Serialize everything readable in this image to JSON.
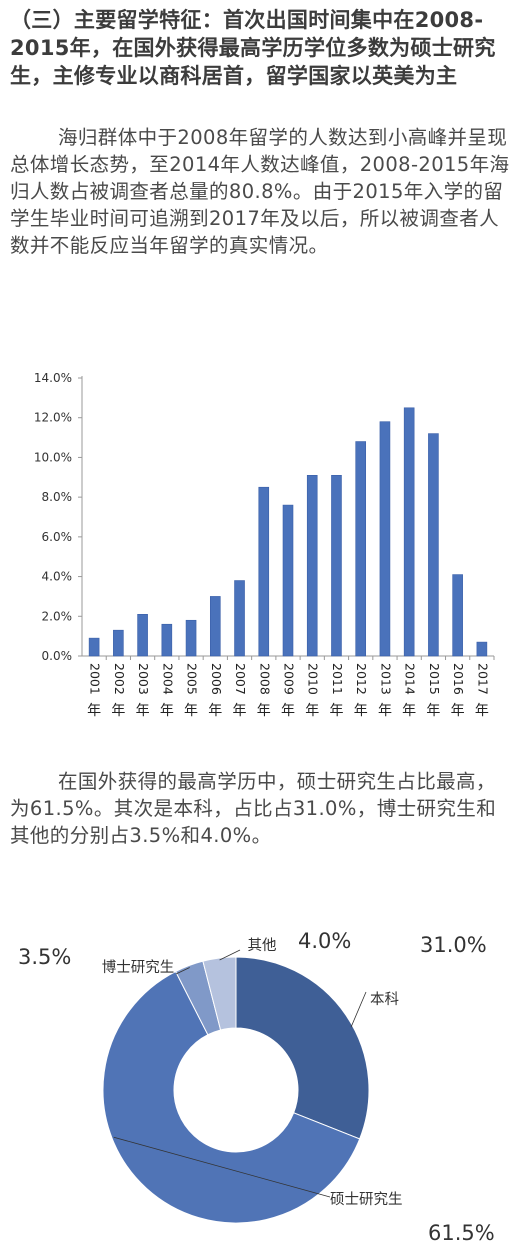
{
  "heading": "（三）主要留学特征：首次出国时间集中在2008-2015年，在国外获得最高学历学位多数为硕士研究生，主修专业以商科居首，留学国家以英美为主",
  "paragraph1": "海归群体中于2008年留学的人数达到小高峰并呈现总体增长态势，至2014年人数达峰值，2008-2015年海归人数占被调查者总量的80.8%。由于2015年入学的留学生毕业时间可追溯到2017年及以后，所以被调查者人数并不能反应当年留学的真实情况。",
  "paragraph2": "在国外获得的最高学历中，硕士研究生占比最高，为61.5%。其次是本科，占比占31.0%，博士研究生和其他的分别占3.5%和4.0%。",
  "chart_data": [
    {
      "type": "bar",
      "categories": [
        "2001年",
        "2002年",
        "2003年",
        "2004年",
        "2005年",
        "2006年",
        "2007年",
        "2008年",
        "2009年",
        "2010年",
        "2011年",
        "2012年",
        "2013年",
        "2014年",
        "2015年",
        "2016年",
        "2017年"
      ],
      "values": [
        0.9,
        1.3,
        2.1,
        1.6,
        1.8,
        3.0,
        3.8,
        8.5,
        7.6,
        9.1,
        9.1,
        10.8,
        11.8,
        12.5,
        11.2,
        4.1,
        0.7
      ],
      "value_unit": "%",
      "yticks": [
        "0.0%",
        "2.0%",
        "4.0%",
        "6.0%",
        "8.0%",
        "10.0%",
        "12.0%",
        "14.0%"
      ],
      "ylim": [
        0,
        14
      ],
      "grid": false,
      "colors": {
        "bar": "#4a72bb",
        "bar_edge": "#3a5fa8"
      }
    },
    {
      "type": "pie",
      "style": "donut",
      "slices": [
        {
          "label": "本科",
          "display": "31.0%",
          "value": 31.0,
          "color": "#3f5f96"
        },
        {
          "label": "硕士研究生",
          "display": "61.5%",
          "value": 61.5,
          "color": "#5074b6"
        },
        {
          "label": "博士研究生",
          "display": "3.5%",
          "value": 3.5,
          "color": "#8099c8"
        },
        {
          "label": "其他",
          "display": "4.0%",
          "value": 4.0,
          "color": "#b5c2de"
        }
      ]
    }
  ]
}
